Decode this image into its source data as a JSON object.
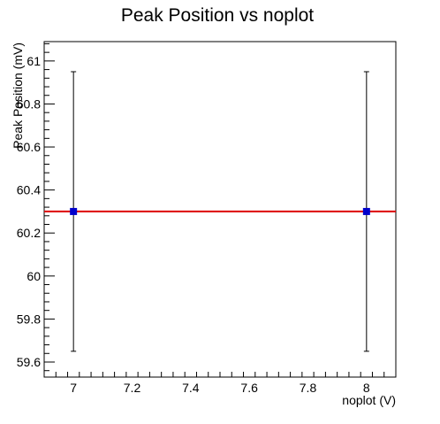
{
  "chart_data": {
    "type": "scatter",
    "title": "Peak Position vs noplot",
    "xlabel": "noplot (V)",
    "ylabel": "Peak Position (mV)",
    "xlim": [
      6.9,
      8.1
    ],
    "ylim": [
      59.53,
      61.09
    ],
    "x_ticks": [
      7,
      7.2,
      7.4,
      7.6,
      7.8,
      8
    ],
    "x_tick_labels": [
      "7",
      "7.2",
      "7.4",
      "7.6",
      "7.8",
      "8"
    ],
    "y_ticks": [
      59.6,
      59.8,
      60,
      60.2,
      60.4,
      60.6,
      60.8,
      61
    ],
    "y_tick_labels": [
      "59.6",
      "59.8",
      "60",
      "60.2",
      "60.4",
      "60.6",
      "60.8",
      "61"
    ],
    "grid": false,
    "series": [
      {
        "x": [
          7,
          8
        ],
        "y": [
          60.3,
          60.3
        ],
        "y_err": [
          0.65,
          0.65
        ],
        "marker_color": "#0000cc",
        "error_bar_color": "#000000"
      }
    ],
    "fit_line": {
      "y": 60.3,
      "color": "#dd0000"
    }
  }
}
